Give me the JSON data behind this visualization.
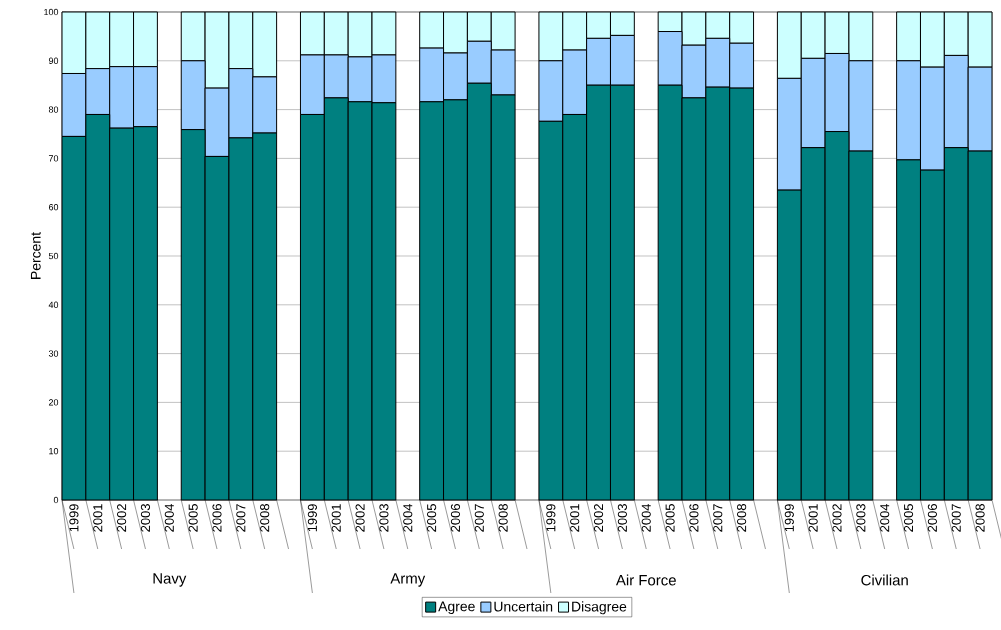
{
  "chart_data": {
    "type": "bar",
    "stacked": true,
    "ylabel": "Percent",
    "categories": [
      "1999",
      "2001",
      "2002",
      "2003",
      "2004",
      "2005",
      "2006",
      "2007",
      "2008",
      null,
      "1999",
      "2001",
      "2002",
      "2003",
      "2004",
      "2005",
      "2006",
      "2007",
      "2008",
      null,
      "1999",
      "2001",
      "2002",
      "2003",
      "2004",
      "2005",
      "2006",
      "2007",
      "2008",
      null,
      "1999",
      "2001",
      "2002",
      "2003",
      "2004",
      "2005",
      "2006",
      "2007",
      "2008"
    ],
    "series": [
      {
        "name": "Agree",
        "color": "#008080",
        "values": [
          74.5,
          79,
          76.2,
          76.5,
          null,
          75.9,
          70.4,
          74.2,
          75.2,
          null,
          79,
          82.4,
          81.6,
          81.4,
          null,
          81.6,
          82,
          85.4,
          83,
          null,
          77.6,
          79,
          85,
          85,
          null,
          85,
          82.4,
          84.6,
          84.4,
          null,
          63.5,
          72.2,
          75.5,
          71.5,
          null,
          69.7,
          67.6,
          72.2,
          71.5
        ]
      },
      {
        "name": "Uncertain",
        "color": "#99ccff",
        "values": [
          12.9,
          9.4,
          12.6,
          12.3,
          null,
          14.1,
          14.0,
          14.2,
          11.5,
          null,
          12.2,
          8.8,
          9.2,
          9.8,
          null,
          11.0,
          9.6,
          8.6,
          9.2,
          null,
          12.4,
          13.2,
          9.6,
          10.2,
          null,
          11.0,
          10.8,
          10.0,
          9.2,
          null,
          22.9,
          18.3,
          16.0,
          18.5,
          null,
          20.3,
          21.1,
          18.9,
          17.2
        ]
      },
      {
        "name": "Disagree",
        "color": "#ccffff",
        "values": [
          12.6,
          11.6,
          11.2,
          11.2,
          null,
          10.0,
          15.6,
          11.6,
          13.3,
          null,
          8.8,
          8.8,
          9.2,
          8.8,
          null,
          7.4,
          8.4,
          6.0,
          7.8,
          null,
          10.0,
          7.8,
          5.4,
          4.8,
          null,
          4.0,
          6.8,
          5.4,
          6.4,
          null,
          13.6,
          9.5,
          8.5,
          10.0,
          null,
          10.0,
          11.3,
          8.9,
          11.3
        ]
      }
    ],
    "annotations": [
      "Navy",
      "Army",
      "Air Force",
      "Civilian"
    ],
    "ylim": [
      0,
      100
    ],
    "yticks": [
      0,
      10,
      20,
      30,
      40,
      50,
      60,
      70,
      80,
      90,
      100
    ],
    "grid": "y",
    "legend": "bottom"
  }
}
